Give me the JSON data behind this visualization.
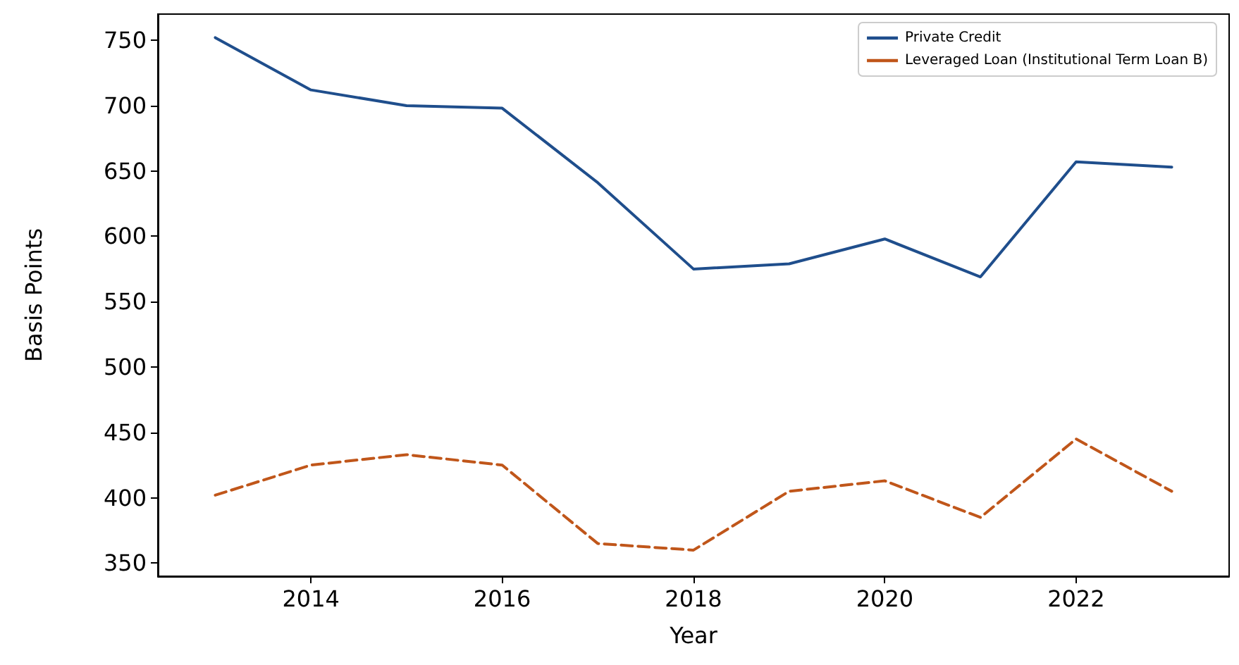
{
  "chart_data": {
    "type": "line",
    "xlabel": "Year",
    "ylabel": "Basis Points",
    "x": [
      2013,
      2014,
      2015,
      2016,
      2017,
      2018,
      2019,
      2020,
      2021,
      2022,
      2023
    ],
    "series": [
      {
        "name": "Private Credit",
        "color": "#1f4e8c",
        "line_style": "solid",
        "values": [
          752,
          712,
          700,
          698,
          641,
          575,
          579,
          598,
          569,
          657,
          653
        ]
      },
      {
        "name": "Leveraged Loan (Institutional Term Loan B)",
        "color": "#c0561a",
        "line_style": "dashed",
        "values": [
          402,
          425,
          433,
          425,
          365,
          360,
          405,
          413,
          385,
          445,
          405
        ]
      }
    ],
    "xlim": [
      2012.4,
      2023.6
    ],
    "xticks": [
      2014,
      2016,
      2018,
      2020,
      2022
    ],
    "ylim": [
      340,
      770
    ],
    "yticks": [
      350,
      400,
      450,
      500,
      550,
      600,
      650,
      700,
      750
    ],
    "grid": false,
    "legend": "top right",
    "marker": "none"
  }
}
